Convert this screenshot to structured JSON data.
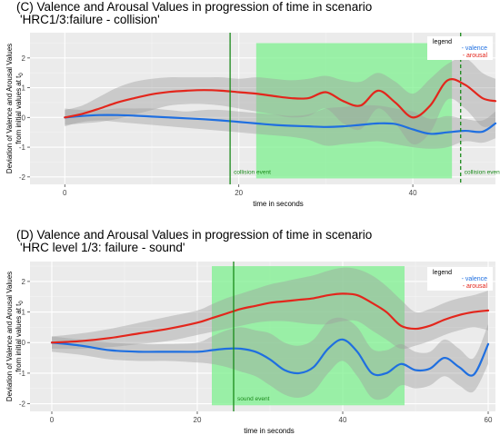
{
  "chart_data": [
    {
      "type": "line",
      "title_line1": "(C) Valence and Arousal Values in progression of time in scenario",
      "title_line2": "'HRC1/3:failure - collision'",
      "xlabel": "time in seconds",
      "ylabel_line1": "Deviation of Valence and Arousal Values",
      "ylabel_line2_main": "from initial values at t",
      "ylabel_line2_sub": "0",
      "xlim": [
        -4,
        49.5
      ],
      "ylim": [
        -2.25,
        2.85
      ],
      "x_ticks": [
        "0",
        "20",
        "40"
      ],
      "x_tick_values": [
        0,
        20,
        40
      ],
      "y_ticks": [
        "-2",
        "-1",
        "0",
        "1",
        "2"
      ],
      "y_tick_values": [
        -2,
        -1,
        0,
        1,
        2
      ],
      "grid": true,
      "legend": {
        "title": "legend",
        "entries": [
          "- valence",
          "- arousal"
        ],
        "placement": "top-right"
      },
      "colors": {
        "valence": "#1f6fe0",
        "arousal": "#e3261c",
        "band": "#9e9e9e",
        "window": "#7ef08f",
        "event": "#1a8a1a"
      },
      "shaded_window": [
        22,
        44.5
      ],
      "events": [
        {
          "x": 19,
          "label": "collision event",
          "style": "solid"
        },
        {
          "x": 45.5,
          "label": "collision event",
          "style": "dashed"
        }
      ],
      "series": [
        {
          "name": "valence",
          "x": [
            0,
            2,
            4,
            6,
            8,
            10,
            12,
            14,
            16,
            18,
            20,
            22,
            24,
            26,
            28,
            30,
            32,
            34,
            36,
            38,
            40,
            42,
            44,
            46,
            48,
            49.5
          ],
          "y": [
            0,
            0.05,
            0.08,
            0.08,
            0.06,
            0.03,
            0,
            -0.03,
            -0.06,
            -0.1,
            -0.15,
            -0.2,
            -0.25,
            -0.28,
            -0.3,
            -0.32,
            -0.3,
            -0.25,
            -0.2,
            -0.22,
            -0.4,
            -0.55,
            -0.5,
            -0.45,
            -0.48,
            -0.2
          ],
          "lower": [
            -0.3,
            -0.15,
            -0.1,
            -0.15,
            -0.2,
            -0.25,
            -0.3,
            -0.35,
            -0.4,
            -0.45,
            -0.5,
            -0.55,
            -0.6,
            -0.65,
            -0.75,
            -0.95,
            -0.9,
            -0.85,
            -0.8,
            -0.9,
            -1.0,
            -1.05,
            -1.0,
            -0.8,
            -0.85,
            -0.7
          ],
          "upper": [
            0.3,
            0.25,
            0.25,
            0.3,
            0.3,
            0.3,
            0.25,
            0.2,
            0.25,
            0.25,
            0.2,
            0.15,
            0.1,
            0.05,
            0.1,
            0.3,
            0.35,
            0.4,
            0.4,
            0.3,
            0.2,
            -0.05,
            0.05,
            -0.05,
            -0.1,
            0.2
          ]
        },
        {
          "name": "arousal",
          "x": [
            0,
            2,
            4,
            6,
            8,
            10,
            12,
            14,
            16,
            18,
            20,
            22,
            24,
            26,
            28,
            30,
            32,
            34,
            36,
            38,
            40,
            42,
            44,
            46,
            48,
            49.5
          ],
          "y": [
            0,
            0.12,
            0.3,
            0.5,
            0.65,
            0.78,
            0.86,
            0.9,
            0.92,
            0.9,
            0.85,
            0.8,
            0.72,
            0.65,
            0.65,
            0.85,
            0.55,
            0.4,
            0.9,
            0.5,
            0.0,
            0.4,
            1.25,
            1.1,
            0.65,
            0.55
          ],
          "lower": [
            -0.25,
            -0.2,
            -0.15,
            -0.05,
            0.1,
            0.25,
            0.4,
            0.45,
            0.45,
            0.4,
            0.3,
            0.2,
            0.1,
            0.0,
            0.05,
            0.3,
            -0.2,
            -0.4,
            0.3,
            -0.2,
            -0.9,
            -0.5,
            0.6,
            0.3,
            -0.3,
            -0.2
          ],
          "upper": [
            0.25,
            0.4,
            0.7,
            1.0,
            1.2,
            1.3,
            1.35,
            1.35,
            1.35,
            1.35,
            1.3,
            1.35,
            1.3,
            1.25,
            1.3,
            1.4,
            1.25,
            1.2,
            1.5,
            1.2,
            0.8,
            1.3,
            1.8,
            2.0,
            1.5,
            1.3
          ]
        }
      ]
    },
    {
      "type": "line",
      "title_line1": "(D) Valence and Arousal Values in progression of time in scenario",
      "title_line2": "'HRC level 1/3: failure - sound'",
      "xlabel": "time in seconds",
      "ylabel_line1": "Deviation of Valence and Arousal Values",
      "ylabel_line2_main": "from initial values at t",
      "ylabel_line2_sub": "0",
      "xlim": [
        -3,
        61
      ],
      "ylim": [
        -2.25,
        2.65
      ],
      "x_ticks": [
        "0",
        "20",
        "40",
        "60"
      ],
      "x_tick_values": [
        0,
        20,
        40,
        60
      ],
      "y_ticks": [
        "-2",
        "-1",
        "0",
        "1",
        "2"
      ],
      "y_tick_values": [
        -2,
        -1,
        0,
        1,
        2
      ],
      "grid": true,
      "legend": {
        "title": "legend",
        "entries": [
          "- valence",
          "- arousal"
        ],
        "placement": "top-right"
      },
      "colors": {
        "valence": "#1f6fe0",
        "arousal": "#e3261c",
        "band": "#9e9e9e",
        "window": "#7ef08f",
        "event": "#1a8a1a"
      },
      "shaded_window": [
        22,
        48.5
      ],
      "events": [
        {
          "x": 25,
          "label": "sound event",
          "style": "solid"
        }
      ],
      "series": [
        {
          "name": "valence",
          "x": [
            0,
            4,
            8,
            12,
            16,
            20,
            22,
            24,
            26,
            28,
            30,
            32,
            34,
            36,
            38,
            40,
            42,
            44,
            46,
            48,
            50,
            52,
            54,
            56,
            58,
            60
          ],
          "y": [
            0,
            -0.1,
            -0.25,
            -0.3,
            -0.3,
            -0.3,
            -0.25,
            -0.2,
            -0.2,
            -0.3,
            -0.55,
            -0.9,
            -1.0,
            -0.8,
            -0.2,
            0.1,
            -0.3,
            -1.0,
            -1.0,
            -0.7,
            -0.9,
            -0.85,
            -0.5,
            -0.8,
            -1.05,
            -0.05
          ],
          "lower": [
            -0.3,
            -0.4,
            -0.55,
            -0.6,
            -0.6,
            -0.65,
            -0.7,
            -0.8,
            -0.95,
            -1.1,
            -1.4,
            -1.7,
            -1.8,
            -1.6,
            -1.0,
            -0.6,
            -1.1,
            -1.8,
            -1.8,
            -1.4,
            -1.5,
            -1.4,
            -1.1,
            -1.4,
            -1.6,
            -0.7
          ],
          "upper": [
            0.2,
            0.1,
            0.0,
            -0.05,
            -0.05,
            0.0,
            0.2,
            0.4,
            0.5,
            0.4,
            0.3,
            0.0,
            -0.1,
            0.1,
            0.7,
            0.8,
            0.5,
            -0.2,
            -0.25,
            -0.05,
            -0.3,
            -0.3,
            0.1,
            -0.2,
            -0.5,
            0.6
          ]
        },
        {
          "name": "arousal",
          "x": [
            0,
            4,
            8,
            12,
            16,
            20,
            22,
            24,
            26,
            28,
            30,
            32,
            34,
            36,
            38,
            40,
            42,
            44,
            46,
            48,
            50,
            52,
            54,
            56,
            58,
            60
          ],
          "y": [
            0,
            0.05,
            0.15,
            0.3,
            0.45,
            0.65,
            0.8,
            0.95,
            1.1,
            1.2,
            1.3,
            1.35,
            1.4,
            1.45,
            1.55,
            1.6,
            1.55,
            1.3,
            1.0,
            0.55,
            0.45,
            0.55,
            0.75,
            0.9,
            1.0,
            1.05
          ],
          "lower": [
            -0.2,
            -0.2,
            -0.15,
            -0.05,
            0.05,
            0.25,
            0.35,
            0.45,
            0.55,
            0.65,
            0.7,
            0.7,
            0.65,
            0.6,
            0.6,
            0.7,
            0.7,
            0.4,
            0.1,
            -0.2,
            -0.1,
            0.05,
            0.25,
            0.4,
            0.5,
            0.4
          ],
          "upper": [
            0.2,
            0.3,
            0.45,
            0.65,
            0.85,
            1.05,
            1.25,
            1.45,
            1.6,
            1.75,
            1.9,
            2.0,
            2.1,
            2.2,
            2.35,
            2.45,
            2.4,
            2.2,
            1.85,
            1.4,
            1.0,
            1.1,
            1.3,
            1.45,
            1.55,
            1.7
          ]
        }
      ]
    }
  ]
}
